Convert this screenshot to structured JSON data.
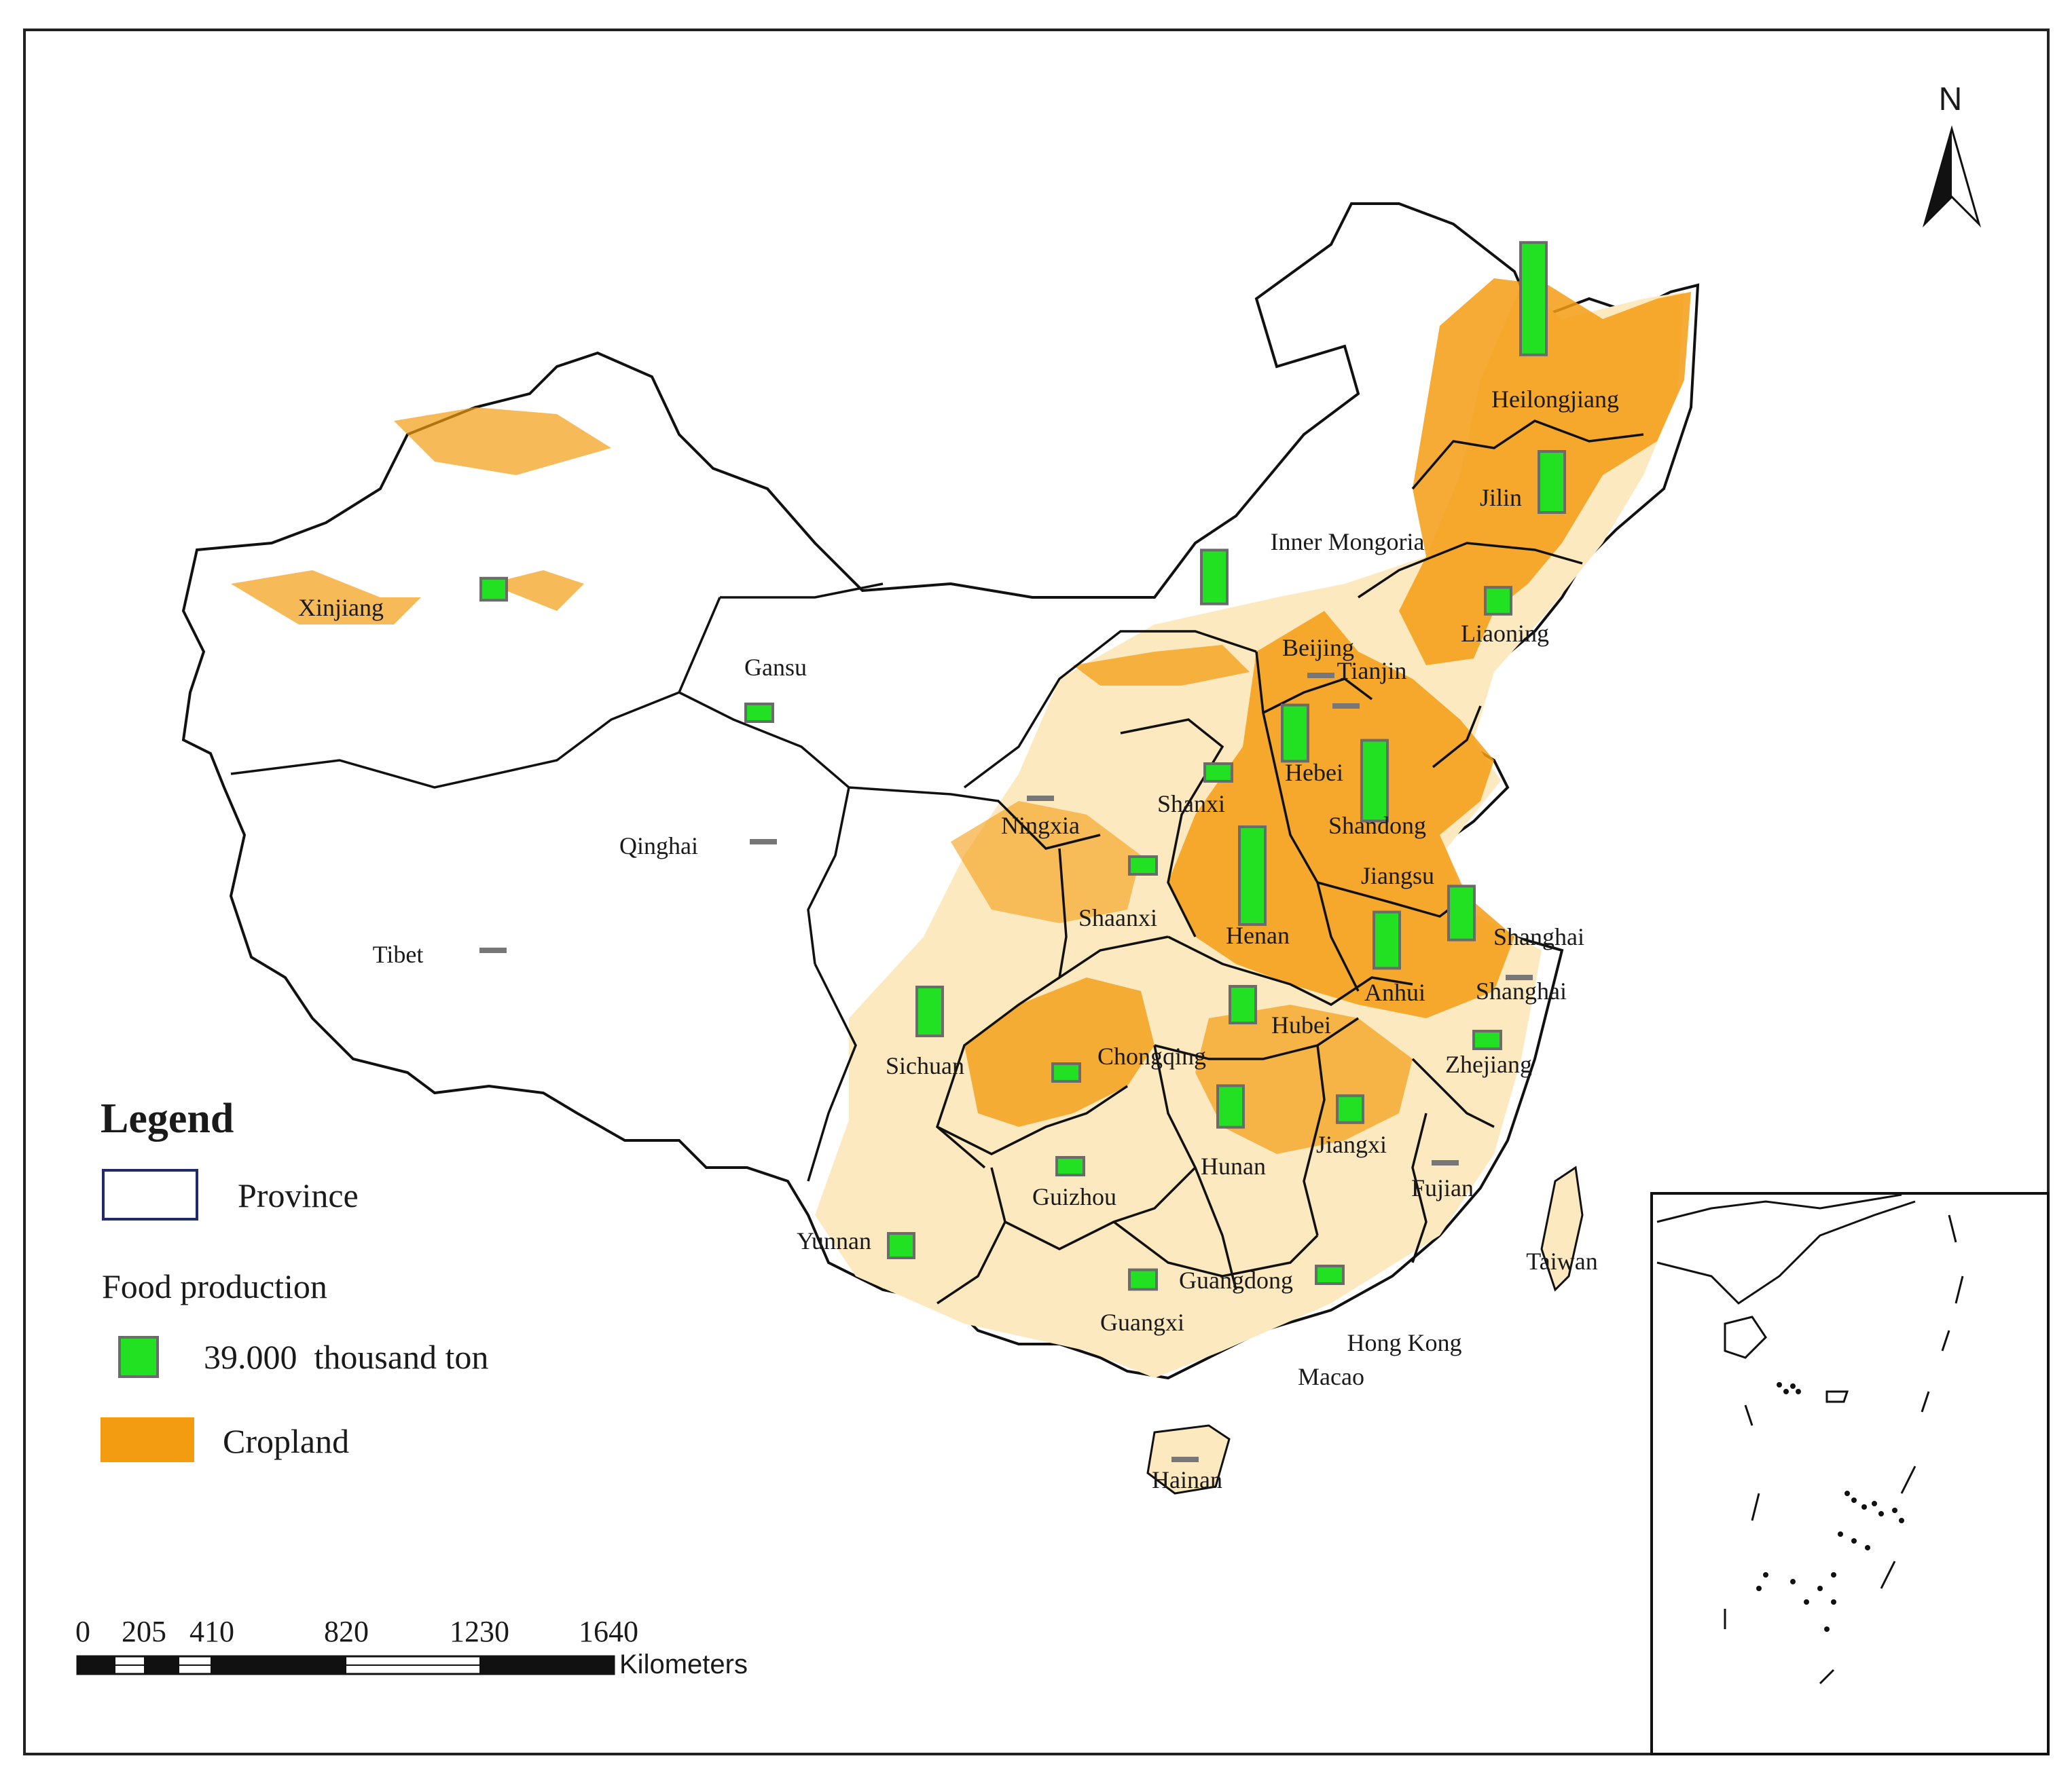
{
  "north_arrow": {
    "label": "N"
  },
  "legend": {
    "title": "Legend",
    "items": [
      {
        "label": "Province"
      },
      {
        "label": "Food production"
      },
      {
        "label": "39.000  thousand ton"
      },
      {
        "label": "Cropland"
      }
    ]
  },
  "scale_bar": {
    "ticks": [
      "0",
      "205",
      "410",
      "820",
      "1230",
      "1640"
    ],
    "unit": "Kilometers"
  },
  "colors": {
    "cropland": "#f39c12",
    "cropland_light": "#fde9c0",
    "production_bar": "#22e022",
    "production_bar_border": "#6b6b6b",
    "province_border": "#111111",
    "legend_province_border": "#1f2a6b"
  },
  "food_production_reference": {
    "value": 39.0,
    "unit": "thousand ton"
  },
  "provinces": [
    {
      "name": "Heilongjiang",
      "production_level": 2.3
    },
    {
      "name": "Jilin",
      "production_level": 1.25
    },
    {
      "name": "Inner Mongoria",
      "production_level": 1.1
    },
    {
      "name": "Liaoning",
      "production_level": 0.55
    },
    {
      "name": "Xinjiang",
      "production_level": 0.45
    },
    {
      "name": "Gansu",
      "production_level": 0.3
    },
    {
      "name": "Beijing",
      "production_level": 0.02
    },
    {
      "name": "Tianjin",
      "production_level": 0.05
    },
    {
      "name": "Hebei",
      "production_level": 1.15
    },
    {
      "name": "Shandong",
      "production_level": 1.65
    },
    {
      "name": "Shanxi",
      "production_level": 0.35
    },
    {
      "name": "Ningxia",
      "production_level": 0.1
    },
    {
      "name": "Qinghai",
      "production_level": 0.02
    },
    {
      "name": "Tibet",
      "production_level": 0.02
    },
    {
      "name": "Shaanxi",
      "production_level": 0.3
    },
    {
      "name": "Henan",
      "production_level": 2.0
    },
    {
      "name": "Jiangsu",
      "production_level": 1.1
    },
    {
      "name": "Anhui",
      "production_level": 1.15
    },
    {
      "name": "Shanghai",
      "production_level": 0.02
    },
    {
      "name": "Hubei",
      "production_level": 0.75
    },
    {
      "name": "Sichuan",
      "production_level": 1.0
    },
    {
      "name": "Chongqing",
      "production_level": 0.3
    },
    {
      "name": "Zhejiang",
      "production_level": 0.15
    },
    {
      "name": "Hunan",
      "production_level": 0.85
    },
    {
      "name": "Jiangxi",
      "production_level": 0.55
    },
    {
      "name": "Guizhou",
      "production_level": 0.25
    },
    {
      "name": "Fujian",
      "production_level": 0.12
    },
    {
      "name": "Yunnan",
      "production_level": 0.5
    },
    {
      "name": "Guangdong",
      "production_level": 0.35
    },
    {
      "name": "Guangxi",
      "production_level": 0.4
    },
    {
      "name": "Taiwan",
      "production_level": 0
    },
    {
      "name": "Hong Kong",
      "production_level": 0
    },
    {
      "name": "Macao",
      "production_level": 0
    },
    {
      "name": "Hainan",
      "production_level": 0.05
    }
  ],
  "extra_labels": [
    {
      "name": "Shanghai"
    }
  ]
}
